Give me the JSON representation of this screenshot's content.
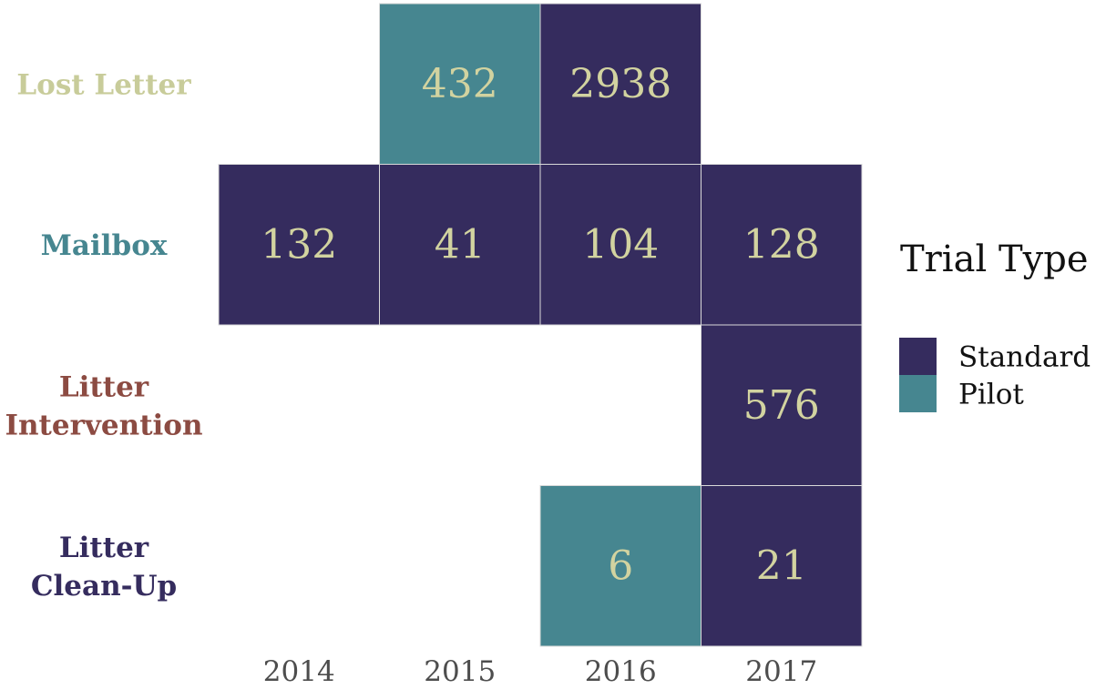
{
  "chart_data": {
    "type": "heatmap",
    "title": "",
    "xlabel": "",
    "ylabel": "",
    "x_categories": [
      "2014",
      "2015",
      "2016",
      "2017"
    ],
    "y_categories": [
      {
        "name": "Lost Letter",
        "lines": [
          "Lost Letter"
        ],
        "color": "#c8cc9a"
      },
      {
        "name": "Mailbox",
        "lines": [
          "Mailbox"
        ],
        "color": "#468690"
      },
      {
        "name": "Litter Intervention",
        "lines": [
          "Litter",
          "Intervention"
        ],
        "color": "#8c4b42"
      },
      {
        "name": "Litter Clean-Up",
        "lines": [
          "Litter",
          "Clean-Up"
        ],
        "color": "#352c5e"
      }
    ],
    "cells": [
      {
        "x": "2015",
        "y": "Lost Letter",
        "value": 432,
        "type": "Pilot"
      },
      {
        "x": "2016",
        "y": "Lost Letter",
        "value": 2938,
        "type": "Standard"
      },
      {
        "x": "2014",
        "y": "Mailbox",
        "value": 132,
        "type": "Standard"
      },
      {
        "x": "2015",
        "y": "Mailbox",
        "value": 41,
        "type": "Standard"
      },
      {
        "x": "2016",
        "y": "Mailbox",
        "value": 104,
        "type": "Standard"
      },
      {
        "x": "2017",
        "y": "Mailbox",
        "value": 128,
        "type": "Standard"
      },
      {
        "x": "2017",
        "y": "Litter Intervention",
        "value": 576,
        "type": "Standard"
      },
      {
        "x": "2016",
        "y": "Litter Clean-Up",
        "value": 6,
        "type": "Pilot"
      },
      {
        "x": "2017",
        "y": "Litter Clean-Up",
        "value": 21,
        "type": "Standard"
      }
    ],
    "legend": {
      "title": "Trial Type",
      "placement": "right",
      "items": [
        {
          "name": "Standard",
          "color": "#352c5e"
        },
        {
          "name": "Pilot",
          "color": "#468690"
        }
      ]
    },
    "cell_text_color": "#d2d3a0",
    "grid": false
  }
}
